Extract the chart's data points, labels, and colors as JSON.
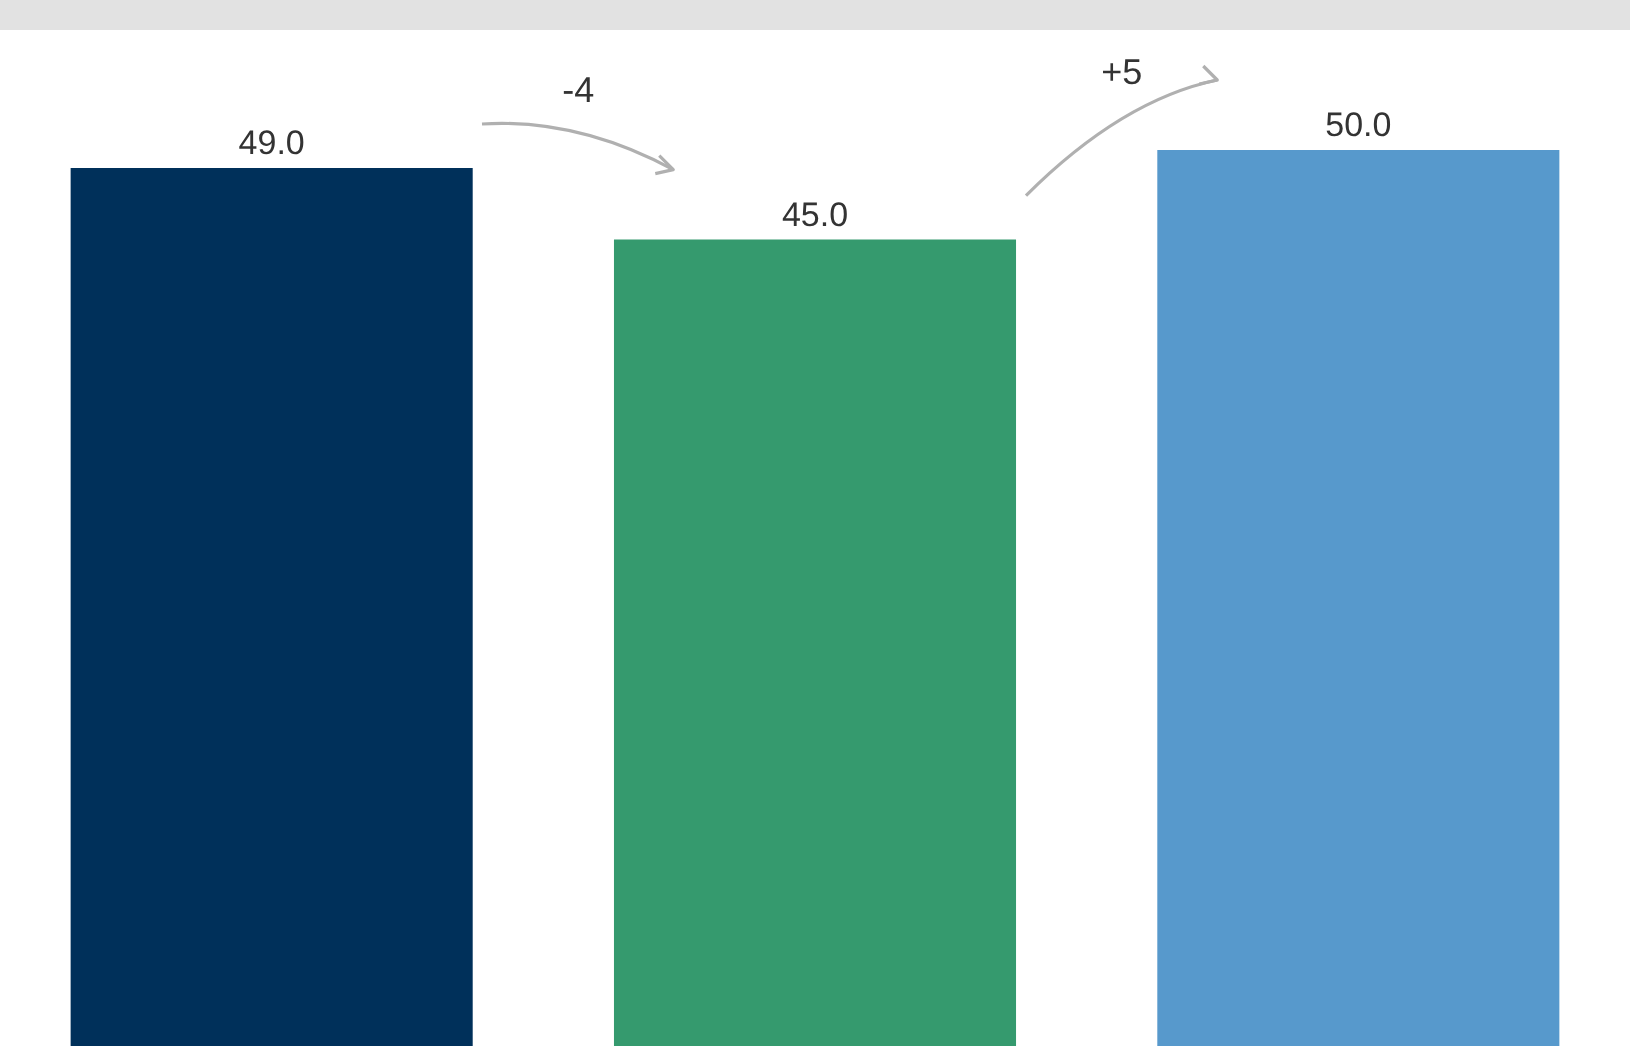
{
  "chart_data": {
    "type": "bar",
    "categories": [
      null,
      null,
      null
    ],
    "values": [
      49.0,
      45.0,
      50.0
    ],
    "colors": [
      "#00305a",
      "#359a6e",
      "#5799cc"
    ],
    "value_labels": [
      "49.0",
      "45.0",
      "50.0"
    ],
    "legend": false,
    "annotations": [
      "-4",
      "+5"
    ]
  }
}
